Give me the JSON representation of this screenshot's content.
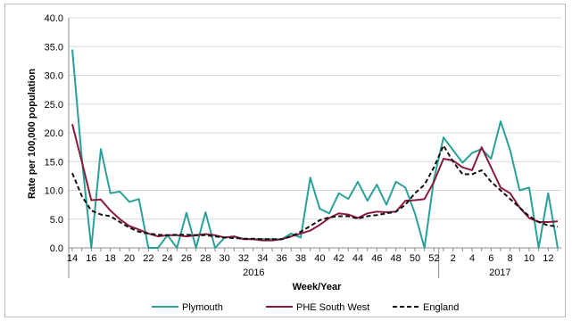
{
  "chart_data": {
    "type": "line",
    "xlabel": "Week/Year",
    "ylabel": "Rate per 100,000 population",
    "ylim": [
      0,
      40
    ],
    "yticks": [
      "0.0",
      "5.0",
      "10.0",
      "15.0",
      "20.0",
      "25.0",
      "30.0",
      "35.0",
      "40.0"
    ],
    "x": [
      14,
      15,
      16,
      17,
      18,
      19,
      20,
      21,
      22,
      23,
      24,
      25,
      26,
      27,
      28,
      29,
      30,
      31,
      32,
      33,
      34,
      35,
      36,
      37,
      38,
      39,
      40,
      41,
      42,
      43,
      44,
      45,
      46,
      47,
      48,
      49,
      50,
      51,
      52,
      1,
      2,
      3,
      4,
      5,
      6,
      7,
      8,
      9,
      10,
      11,
      12,
      13
    ],
    "xtick_labels": [
      "14",
      "16",
      "18",
      "20",
      "22",
      "24",
      "26",
      "28",
      "30",
      "32",
      "34",
      "36",
      "38",
      "40",
      "42",
      "44",
      "46",
      "48",
      "50",
      "52",
      "2",
      "4",
      "6",
      "8",
      "10",
      "12"
    ],
    "year_labels": [
      "2016",
      "2017"
    ],
    "grid": "horizontal",
    "legend": "bottom",
    "series": [
      {
        "name": "Plymouth",
        "color": "#2aa198",
        "style": "solid",
        "values": [
          34.5,
          15.5,
          0,
          17.2,
          9.5,
          9.8,
          8.0,
          8.5,
          0,
          0,
          2.2,
          0,
          6.1,
          0,
          6.2,
          0,
          1.8,
          1.9,
          1.6,
          1.5,
          1.5,
          1.5,
          1.5,
          2.5,
          1.8,
          12.2,
          6.8,
          6.0,
          9.5,
          8.5,
          11.5,
          8.2,
          11.0,
          7.5,
          11.5,
          10.5,
          6.0,
          0,
          12.0,
          19.2,
          17.0,
          14.8,
          16.5,
          17.2,
          15.5,
          22.0,
          17.0,
          10.0,
          10.5,
          0,
          9.5,
          0
        ]
      },
      {
        "name": "PHE South West",
        "color": "#8b1a3a",
        "style": "solid",
        "values": [
          21.5,
          15.0,
          8.3,
          8.4,
          6.5,
          5.0,
          3.8,
          3.2,
          2.5,
          2.0,
          2.2,
          2.2,
          2.0,
          2.2,
          2.4,
          2.2,
          1.8,
          2.0,
          1.5,
          1.5,
          1.3,
          1.3,
          1.5,
          2.0,
          2.5,
          3.0,
          4.0,
          5.2,
          6.0,
          5.8,
          5.2,
          6.0,
          6.3,
          6.2,
          6.3,
          8.2,
          8.3,
          8.5,
          11.5,
          15.5,
          15.2,
          14.0,
          13.5,
          17.5,
          14.0,
          10.5,
          9.5,
          7.0,
          5.2,
          4.5,
          4.5,
          4.6
        ]
      },
      {
        "name": "England",
        "color": "#111111",
        "style": "dashed",
        "values": [
          13.0,
          9.0,
          6.5,
          5.8,
          5.5,
          4.5,
          3.5,
          2.8,
          2.5,
          2.3,
          2.2,
          2.3,
          2.3,
          2.2,
          2.2,
          2.0,
          1.8,
          1.7,
          1.6,
          1.6,
          1.5,
          1.5,
          1.5,
          2.0,
          2.8,
          3.8,
          4.8,
          5.3,
          5.5,
          5.5,
          5.1,
          5.5,
          5.7,
          6.0,
          6.3,
          7.5,
          9.5,
          11.0,
          14.0,
          17.8,
          15.0,
          12.8,
          12.8,
          13.5,
          11.5,
          10.0,
          8.5,
          7.0,
          5.5,
          4.5,
          3.9,
          3.7
        ]
      }
    ]
  }
}
